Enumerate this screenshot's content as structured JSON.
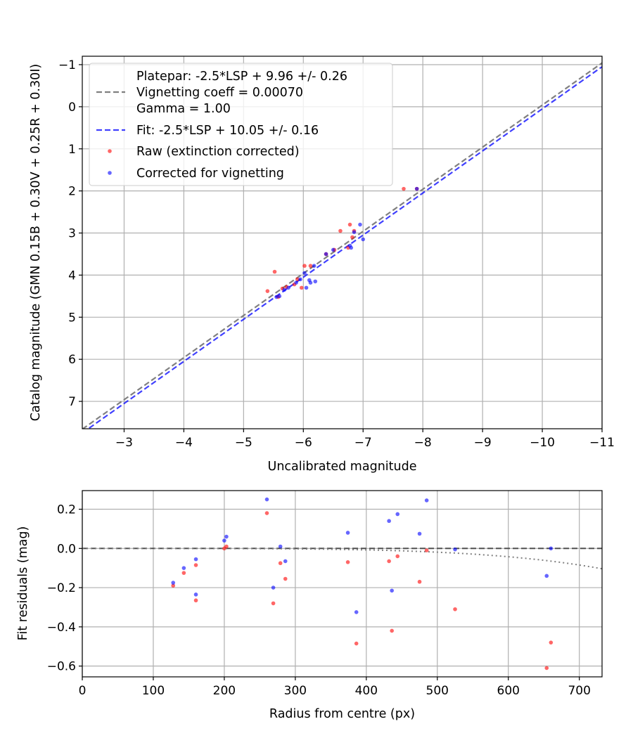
{
  "chart_data": [
    {
      "type": "scatter",
      "xlabel": "Uncalibrated magnitude",
      "ylabel": "Catalog magnitude (GMN 0.15B + 0.30V + 0.25R + 0.30I)",
      "xlim": [
        -2.3,
        -11.0
      ],
      "ylim": [
        7.65,
        -1.2
      ],
      "xticks": [
        -3,
        -4,
        -5,
        -6,
        -7,
        -8,
        -9,
        -10,
        -11
      ],
      "xtick_labels": [
        "−3",
        "−4",
        "−5",
        "−6",
        "−7",
        "−8",
        "−9",
        "−10",
        "−11"
      ],
      "yticks": [
        -1,
        0,
        1,
        2,
        3,
        4,
        5,
        6,
        7
      ],
      "ytick_labels": [
        "−1",
        "0",
        "1",
        "2",
        "3",
        "4",
        "5",
        "6",
        "7"
      ],
      "grid": true,
      "legend_position": "top-left",
      "lines": [
        {
          "name": "platepar",
          "label_lines": [
            "Platepar: -2.5*LSP + 9.96 +/- 0.26",
            "Vignetting coeff = 0.00070",
            "Gamma = 1.00"
          ],
          "offset": 9.96,
          "color": "#808080",
          "style": "dashed"
        },
        {
          "name": "fit",
          "label_lines": [
            "Fit: -2.5*LSP + 10.05 +/- 0.16"
          ],
          "offset": 10.05,
          "color": "#0000ff",
          "style": "dashed"
        }
      ],
      "series": [
        {
          "name": "Raw (extinction corrected)",
          "color": "#ff0000",
          "points": [
            [
              -5.4,
              4.38
            ],
            [
              -5.52,
              3.92
            ],
            [
              -5.58,
              4.52
            ],
            [
              -5.65,
              4.32
            ],
            [
              -5.72,
              4.28
            ],
            [
              -5.85,
              4.22
            ],
            [
              -5.9,
              4.1
            ],
            [
              -5.97,
              4.3
            ],
            [
              -6.02,
              3.78
            ],
            [
              -6.12,
              3.78
            ],
            [
              -6.38,
              3.5
            ],
            [
              -6.52,
              3.4
            ],
            [
              -6.62,
              2.95
            ],
            [
              -6.75,
              3.35
            ],
            [
              -6.78,
              2.8
            ],
            [
              -6.82,
              3.1
            ],
            [
              -6.85,
              2.95
            ],
            [
              -7.68,
              1.95
            ],
            [
              -7.9,
              1.95
            ]
          ]
        },
        {
          "name": "Corrected for vignetting",
          "color": "#0000ff",
          "points": [
            [
              -5.55,
              4.52
            ],
            [
              -5.6,
              4.5
            ],
            [
              -5.68,
              4.35
            ],
            [
              -5.75,
              4.3
            ],
            [
              -5.88,
              4.18
            ],
            [
              -5.95,
              4.1
            ],
            [
              -6.02,
              3.95
            ],
            [
              -6.05,
              4.3
            ],
            [
              -6.1,
              4.12
            ],
            [
              -6.12,
              4.18
            ],
            [
              -6.18,
              3.78
            ],
            [
              -6.2,
              4.15
            ],
            [
              -6.38,
              3.5
            ],
            [
              -6.5,
              3.4
            ],
            [
              -6.78,
              3.3
            ],
            [
              -6.8,
              3.35
            ],
            [
              -6.85,
              2.98
            ],
            [
              -6.95,
              2.8
            ],
            [
              -7.0,
              3.15
            ],
            [
              -7.9,
              1.95
            ]
          ]
        }
      ]
    },
    {
      "type": "scatter",
      "xlabel": "Radius from centre (px)",
      "ylabel": "Fit residuals (mag)",
      "xlim": [
        0,
        732
      ],
      "ylim": [
        -0.655,
        0.295
      ],
      "xticks": [
        0,
        100,
        200,
        300,
        400,
        500,
        600,
        700
      ],
      "xtick_labels": [
        "0",
        "100",
        "200",
        "300",
        "400",
        "500",
        "600",
        "700"
      ],
      "yticks": [
        0.2,
        0.0,
        -0.2,
        -0.4,
        -0.6
      ],
      "ytick_labels": [
        "0.2",
        "0.0",
        "−0.2",
        "−0.4",
        "−0.6"
      ],
      "grid": true,
      "reference_line": {
        "y": 0.0,
        "color": "#505050",
        "style": "dashed"
      },
      "vignetting_curve": {
        "coeff": 0.0007,
        "color": "#808080",
        "style": "dotted"
      },
      "series": [
        {
          "name": "Raw (extinction corrected)",
          "color": "#ff0000",
          "points": [
            [
              128,
              -0.19
            ],
            [
              143,
              -0.125
            ],
            [
              160,
              -0.085
            ],
            [
              160,
              -0.265
            ],
            [
              200,
              0.0
            ],
            [
              203,
              0.01
            ],
            [
              260,
              0.18
            ],
            [
              269,
              -0.28
            ],
            [
              279,
              -0.075
            ],
            [
              286,
              -0.155
            ],
            [
              374,
              -0.07
            ],
            [
              386,
              -0.485
            ],
            [
              432,
              -0.065
            ],
            [
              436,
              -0.42
            ],
            [
              444,
              -0.04
            ],
            [
              475,
              -0.17
            ],
            [
              485,
              -0.01
            ],
            [
              525,
              -0.31
            ],
            [
              654,
              -0.61
            ],
            [
              660,
              -0.48
            ]
          ]
        },
        {
          "name": "Corrected for vignetting",
          "color": "#0000ff",
          "points": [
            [
              128,
              -0.175
            ],
            [
              143,
              -0.1
            ],
            [
              160,
              -0.055
            ],
            [
              160,
              -0.235
            ],
            [
              200,
              0.04
            ],
            [
              203,
              0.06
            ],
            [
              260,
              0.25
            ],
            [
              269,
              -0.2
            ],
            [
              279,
              0.01
            ],
            [
              286,
              -0.065
            ],
            [
              374,
              0.08
            ],
            [
              386,
              -0.325
            ],
            [
              432,
              0.14
            ],
            [
              436,
              -0.215
            ],
            [
              444,
              0.175
            ],
            [
              475,
              0.075
            ],
            [
              485,
              0.245
            ],
            [
              525,
              -0.005
            ],
            [
              654,
              -0.14
            ],
            [
              660,
              0.0
            ]
          ]
        }
      ]
    }
  ]
}
